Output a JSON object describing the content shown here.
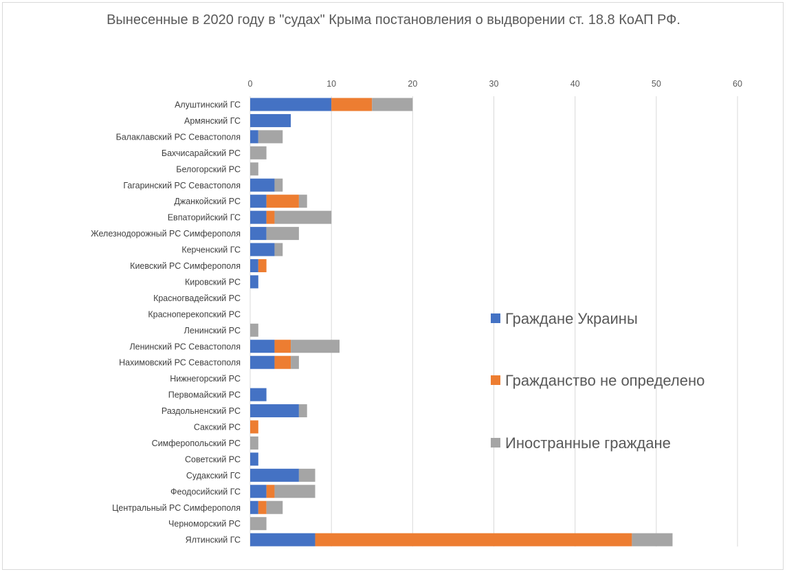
{
  "chart_data": {
    "type": "bar",
    "orientation": "horizontal",
    "stacked": true,
    "title": "Вынесенные в 2020 году в \"судах\" Крыма постановления о выдворении ст. 18.8 КоАП РФ.",
    "xlim": [
      0,
      60
    ],
    "xticks": [
      "0",
      "10",
      "20",
      "30",
      "40",
      "50",
      "60"
    ],
    "grid": true,
    "legend_position": "right",
    "categories": [
      "Алуштинский ГС",
      "Армянский ГС",
      "Балаклавский РС Севастополя",
      "Бахчисарайский РС",
      "Белогорский РС",
      "Гагаринский РС Севастополя",
      "Джанкойский РС",
      "Евпаторийский ГС",
      "Железнодорожный РС Симферополя",
      "Керченский ГС",
      "Киевский РС Симферополя",
      "Кировский РС",
      "Красногвадейский РС",
      "Красноперекопский РС",
      "Ленинский РС",
      "Ленинский РС Севастополя",
      "Нахимовский РС Севастополя",
      "Нижнегорский РС",
      "Первомайский РС",
      "Раздольненский РС",
      "Сакский РС",
      "Симферопольский РС",
      "Советский РС",
      "Судакский ГС",
      "Феодосийский ГС",
      "Центральный РС Симферополя",
      "Черноморский РС",
      "Ялтинский ГС"
    ],
    "series": [
      {
        "name": "Граждане Украины",
        "color": "#4472c4",
        "values": [
          10,
          5,
          1,
          0,
          0,
          3,
          2,
          2,
          2,
          3,
          1,
          1,
          0,
          0,
          0,
          3,
          3,
          0,
          2,
          6,
          0,
          0,
          1,
          6,
          2,
          1,
          0,
          8
        ]
      },
      {
        "name": "Гражданство не определено",
        "color": "#ed7d31",
        "values": [
          5,
          0,
          0,
          0,
          0,
          0,
          4,
          1,
          0,
          0,
          1,
          0,
          0,
          0,
          0,
          2,
          2,
          0,
          0,
          0,
          1,
          0,
          0,
          0,
          1,
          1,
          0,
          39
        ]
      },
      {
        "name": "Иностранные граждане",
        "color": "#a5a5a5",
        "values": [
          5,
          0,
          3,
          2,
          1,
          1,
          1,
          7,
          4,
          1,
          0,
          0,
          0,
          0,
          1,
          6,
          1,
          0,
          0,
          1,
          0,
          1,
          0,
          2,
          5,
          2,
          2,
          5
        ]
      }
    ]
  }
}
